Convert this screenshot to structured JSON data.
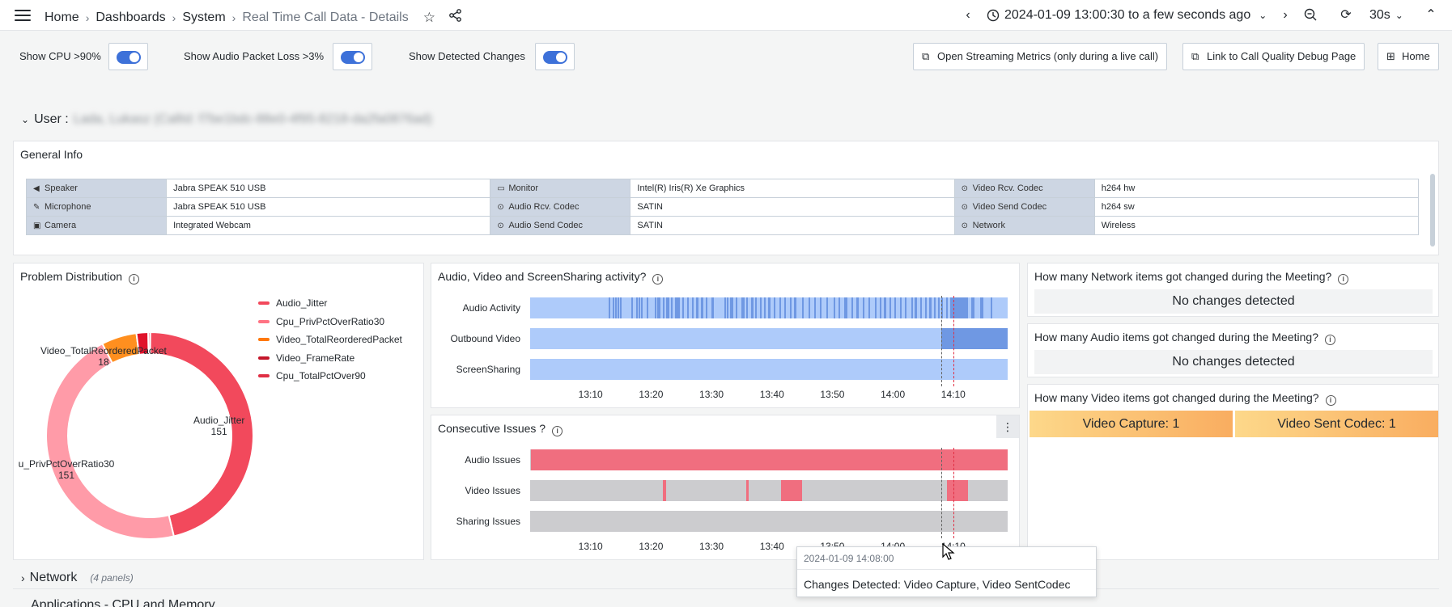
{
  "breadcrumbs": [
    "Home",
    "Dashboards",
    "System",
    "Real Time Call Data - Details"
  ],
  "time_range": "2024-01-09 13:00:30 to a few seconds ago",
  "refresh_interval": "30s",
  "variables": {
    "show_cpu": "Show CPU >90%",
    "show_audio_loss": "Show Audio Packet Loss >3%",
    "show_changes": "Show Detected Changes"
  },
  "links": {
    "streaming": "Open Streaming Metrics (only during a live call)",
    "debug": "Link to Call Quality Debug Page",
    "home": "Home"
  },
  "user_row": {
    "label": "User :",
    "value": "Lada, Lukasz (CallId: f7be1bdc-88e0-4f95-8218-da2fa0876ad)"
  },
  "general_info": {
    "title": "General Info",
    "rows": [
      [
        {
          "k": "Speaker",
          "icon": "speaker-icon",
          "v": "Jabra SPEAK 510 USB"
        },
        {
          "k": "Monitor",
          "icon": "monitor-icon",
          "v": "Intel(R) Iris(R) Xe Graphics"
        },
        {
          "k": "Video Rcv. Codec",
          "icon": "codec-icon",
          "v": "h264 hw"
        }
      ],
      [
        {
          "k": "Microphone",
          "icon": "microphone-icon",
          "v": "Jabra SPEAK 510 USB"
        },
        {
          "k": "Audio Rcv. Codec",
          "icon": "codec-icon",
          "v": "SATIN"
        },
        {
          "k": "Video Send Codec",
          "icon": "codec-icon",
          "v": "h264 sw"
        }
      ],
      [
        {
          "k": "Camera",
          "icon": "camera-icon",
          "v": "Integrated Webcam"
        },
        {
          "k": "Audio Send Codec",
          "icon": "codec-icon",
          "v": "SATIN"
        },
        {
          "k": "Network",
          "icon": "network-icon",
          "v": "Wireless"
        }
      ]
    ]
  },
  "problem_distribution": {
    "title": "Problem Distribution",
    "legend": [
      {
        "name": "Audio_Jitter",
        "color": "#f2495c"
      },
      {
        "name": "Cpu_PrivPctOverRatio30",
        "color": "#ff7383"
      },
      {
        "name": "Video_TotalReorderedPacket",
        "color": "#ff780a"
      },
      {
        "name": "Video_FrameRate",
        "color": "#c4162a"
      },
      {
        "name": "Cpu_TotalPctOver90",
        "color": "#e02f44"
      }
    ],
    "labels": {
      "reordered": "Video_TotalReorderedPacket",
      "reordered_val": "18",
      "jitter": "Audio_Jitter",
      "jitter_val": "151",
      "priv": "u_PrivPctOverRatio30",
      "priv_val": "151"
    }
  },
  "chart_data": [
    {
      "type": "pie",
      "title": "Problem Distribution",
      "categories": [
        "Audio_Jitter",
        "Cpu_PrivPctOverRatio30",
        "Video_TotalReorderedPacket",
        "Video_FrameRate",
        "Cpu_TotalPctOver90"
      ],
      "values": [
        151,
        151,
        18,
        6,
        1
      ],
      "colors": [
        "#f2495c",
        "#ff9ba8",
        "#ff8f1f",
        "#e0122a",
        "#f03e55"
      ],
      "donut": true
    },
    {
      "type": "table",
      "title": "Audio, Video and ScreenSharing activity?",
      "rows": [
        "Audio Activity",
        "Outbound Video",
        "ScreenSharing"
      ],
      "x_ticks": [
        "13:10",
        "13:20",
        "13:30",
        "13:40",
        "13:50",
        "14:00",
        "14:10"
      ],
      "x_range": [
        "13:00",
        "14:19"
      ],
      "base_color": "#aecbfa",
      "active_color": "#6f98e3",
      "segments": {
        "Audio Activity": [
          [
            13.0,
            13.3
          ],
          [
            13.6,
            13.9
          ],
          [
            14.0,
            14.2
          ],
          [
            14.5,
            14.7
          ],
          [
            14.9,
            15.1
          ],
          [
            16.8,
            17.0
          ],
          [
            17.5,
            17.7
          ],
          [
            17.9,
            18.1
          ],
          [
            18.3,
            18.5
          ],
          [
            19.3,
            19.6
          ],
          [
            20.6,
            20.8
          ],
          [
            21.0,
            21.5
          ],
          [
            22.0,
            22.2
          ],
          [
            22.5,
            23.0
          ],
          [
            23.3,
            23.6
          ],
          [
            24.0,
            24.8
          ],
          [
            25.2,
            25.5
          ],
          [
            26.0,
            26.3
          ],
          [
            26.8,
            27.0
          ],
          [
            27.5,
            27.9
          ],
          [
            28.3,
            28.6
          ],
          [
            29.0,
            29.2
          ],
          [
            30.0,
            30.4
          ],
          [
            32.2,
            32.4
          ],
          [
            32.6,
            32.8
          ],
          [
            33.1,
            33.6
          ],
          [
            34.0,
            34.2
          ],
          [
            35.0,
            35.5
          ],
          [
            35.8,
            36.0
          ],
          [
            36.6,
            36.9
          ],
          [
            37.2,
            37.4
          ],
          [
            38.0,
            38.3
          ],
          [
            38.7,
            38.9
          ],
          [
            39.4,
            39.8
          ],
          [
            40.3,
            40.5
          ],
          [
            41.3,
            41.5
          ],
          [
            42.0,
            42.3
          ],
          [
            43.0,
            43.2
          ],
          [
            43.7,
            44.0
          ],
          [
            45.0,
            45.3
          ],
          [
            46.0,
            46.2
          ],
          [
            47.0,
            47.3
          ],
          [
            48.0,
            48.2
          ],
          [
            49.0,
            49.3
          ],
          [
            50.2,
            50.5
          ],
          [
            51.0,
            51.3
          ],
          [
            52.0,
            52.5
          ],
          [
            53.1,
            53.3
          ],
          [
            54.0,
            54.4
          ],
          [
            55.0,
            55.3
          ],
          [
            56.0,
            56.2
          ],
          [
            57.0,
            57.3
          ],
          [
            57.8,
            58.0
          ],
          [
            58.5,
            58.9
          ],
          [
            59.5,
            59.7
          ],
          [
            60.2,
            60.5
          ],
          [
            61.2,
            61.4
          ],
          [
            62.0,
            62.3
          ],
          [
            63.0,
            63.2
          ],
          [
            63.6,
            64.0
          ],
          [
            64.5,
            64.8
          ],
          [
            65.3,
            65.5
          ],
          [
            66.0,
            66.4
          ],
          [
            66.8,
            67.0
          ],
          [
            67.5,
            67.7
          ],
          [
            68.0,
            68.3
          ],
          [
            68.8,
            69.0
          ],
          [
            69.5,
            72.5
          ],
          [
            73.0,
            73.5
          ],
          [
            74.5,
            75.0
          ],
          [
            76.2,
            76.5
          ]
        ],
        "Outbound Video": [
          [
            68.0,
            79.0
          ]
        ],
        "ScreenSharing": []
      }
    },
    {
      "type": "table",
      "title": "Consecutive Issues ?",
      "rows": [
        "Audio Issues",
        "Video Issues",
        "Sharing Issues"
      ],
      "x_ticks": [
        "13:10",
        "13:20",
        "13:30",
        "13:40",
        "13:50",
        "14:00",
        "14:10"
      ],
      "x_range": [
        "13:00",
        "14:19"
      ],
      "base_color": "#cccccf",
      "active_color": "#f06e7f",
      "segments": {
        "Audio Issues": [
          [
            0.2,
            79.0
          ]
        ],
        "Video Issues": [
          [
            22.0,
            22.5
          ],
          [
            35.7,
            36.2
          ],
          [
            41.5,
            45.0
          ],
          [
            69.0,
            72.5
          ]
        ],
        "Sharing Issues": []
      }
    }
  ],
  "activity_title": "Audio, Video and ScreenSharing activity?",
  "issues_title": "Consecutive Issues ?",
  "network_changes": {
    "title": "How many Network items got changed during the Meeting?",
    "value": "No changes detected"
  },
  "audio_changes": {
    "title": "How many Audio items got changed during the Meeting?",
    "value": "No changes detected"
  },
  "video_changes": {
    "title": "How many Video items got changed during the Meeting?",
    "items": [
      "Video Capture: 1",
      "Video Sent Codec: 1"
    ]
  },
  "network_row": {
    "label": "Network",
    "count": "(4 panels)"
  },
  "apps_row": {
    "label": "Applications - CPU and Memory"
  },
  "tooltip": {
    "time": "2024-01-09 14:08:00",
    "message": "Changes Detected: Video Capture, Video SentCodec"
  }
}
